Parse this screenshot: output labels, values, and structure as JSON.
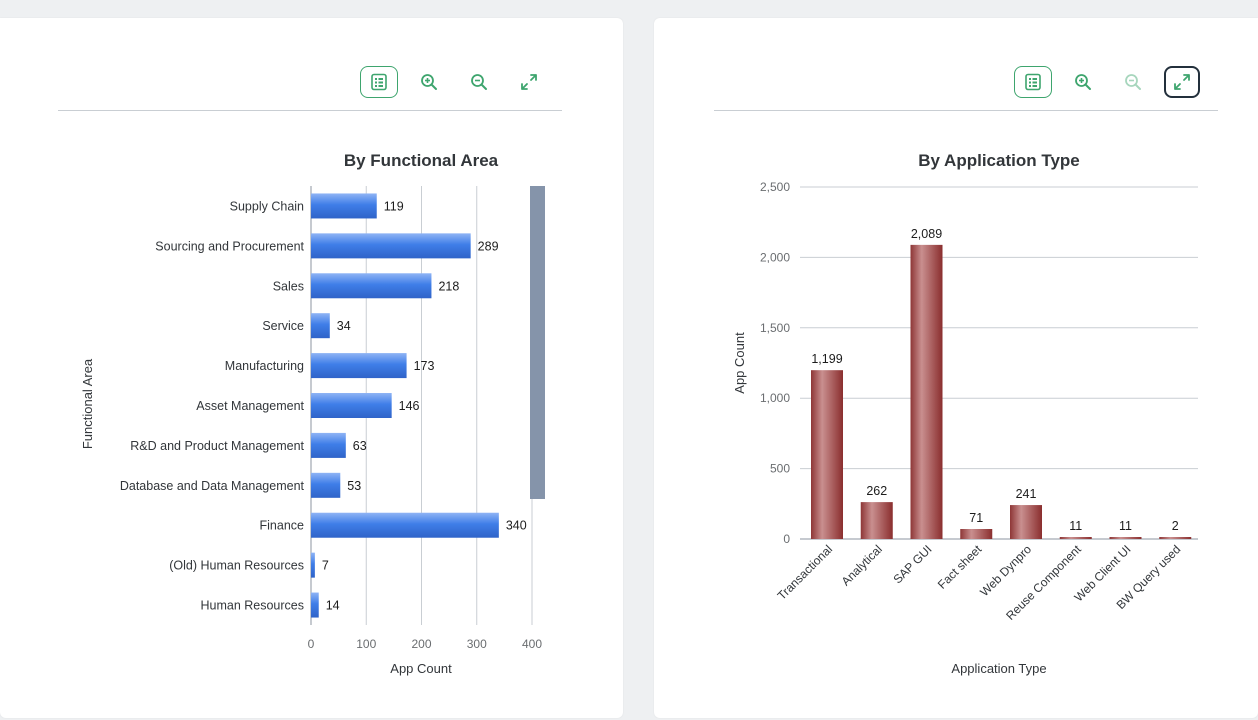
{
  "colors": {
    "accent_green": "#3ea56e",
    "bar_blue": "#3f7ee8",
    "bar_red": "#a84a4a",
    "grid": "#c9ced3",
    "scrollbar": "#8594aa"
  },
  "left_panel": {
    "toolbar": {
      "table_icon": "table-view-icon",
      "zoom_in_icon": "zoom-in-icon",
      "zoom_out_icon": "zoom-out-icon",
      "fullscreen_icon": "fullscreen-icon"
    }
  },
  "right_panel": {
    "toolbar": {
      "table_icon": "table-view-icon",
      "zoom_in_icon": "zoom-in-icon",
      "zoom_out_icon": "zoom-out-icon",
      "zoom_out_disabled": true,
      "fullscreen_icon": "fullscreen-icon",
      "fullscreen_active": true
    }
  },
  "chart_data": [
    {
      "type": "bar",
      "orientation": "horizontal",
      "title": "By Functional Area",
      "xlabel": "App Count",
      "ylabel": "Functional Area",
      "categories": [
        "Supply Chain",
        "Sourcing and Procurement",
        "Sales",
        "Service",
        "Manufacturing",
        "Asset Management",
        "R&D and Product Management",
        "Database and Data Management",
        "Finance",
        "(Old) Human Resources",
        "Human Resources"
      ],
      "values": [
        119,
        289,
        218,
        34,
        173,
        146,
        63,
        53,
        340,
        7,
        14
      ],
      "data_labels": [
        "119",
        "289",
        "218",
        "34",
        "173",
        "146",
        "63",
        "53",
        "340",
        "7",
        "14"
      ],
      "xticks": [
        "0",
        "100",
        "200",
        "300",
        "400"
      ],
      "xlim": [
        0,
        400
      ],
      "grid": true,
      "scrollbar": true
    },
    {
      "type": "bar",
      "orientation": "vertical",
      "title": "By Application Type",
      "xlabel": "Application Type",
      "ylabel": "App Count",
      "categories": [
        "Transactional",
        "Analytical",
        "SAP GUI",
        "Fact sheet",
        "Web Dynpro",
        "Reuse Component",
        "Web Client UI",
        "BW Query used"
      ],
      "values": [
        1199,
        262,
        2089,
        71,
        241,
        11,
        11,
        2
      ],
      "data_labels": [
        "1,199",
        "262",
        "2,089",
        "71",
        "241",
        "11",
        "11",
        "2"
      ],
      "yticks": [
        "0",
        "500",
        "1,000",
        "1,500",
        "2,000",
        "2,500"
      ],
      "ylim": [
        0,
        2500
      ],
      "grid": true
    }
  ]
}
